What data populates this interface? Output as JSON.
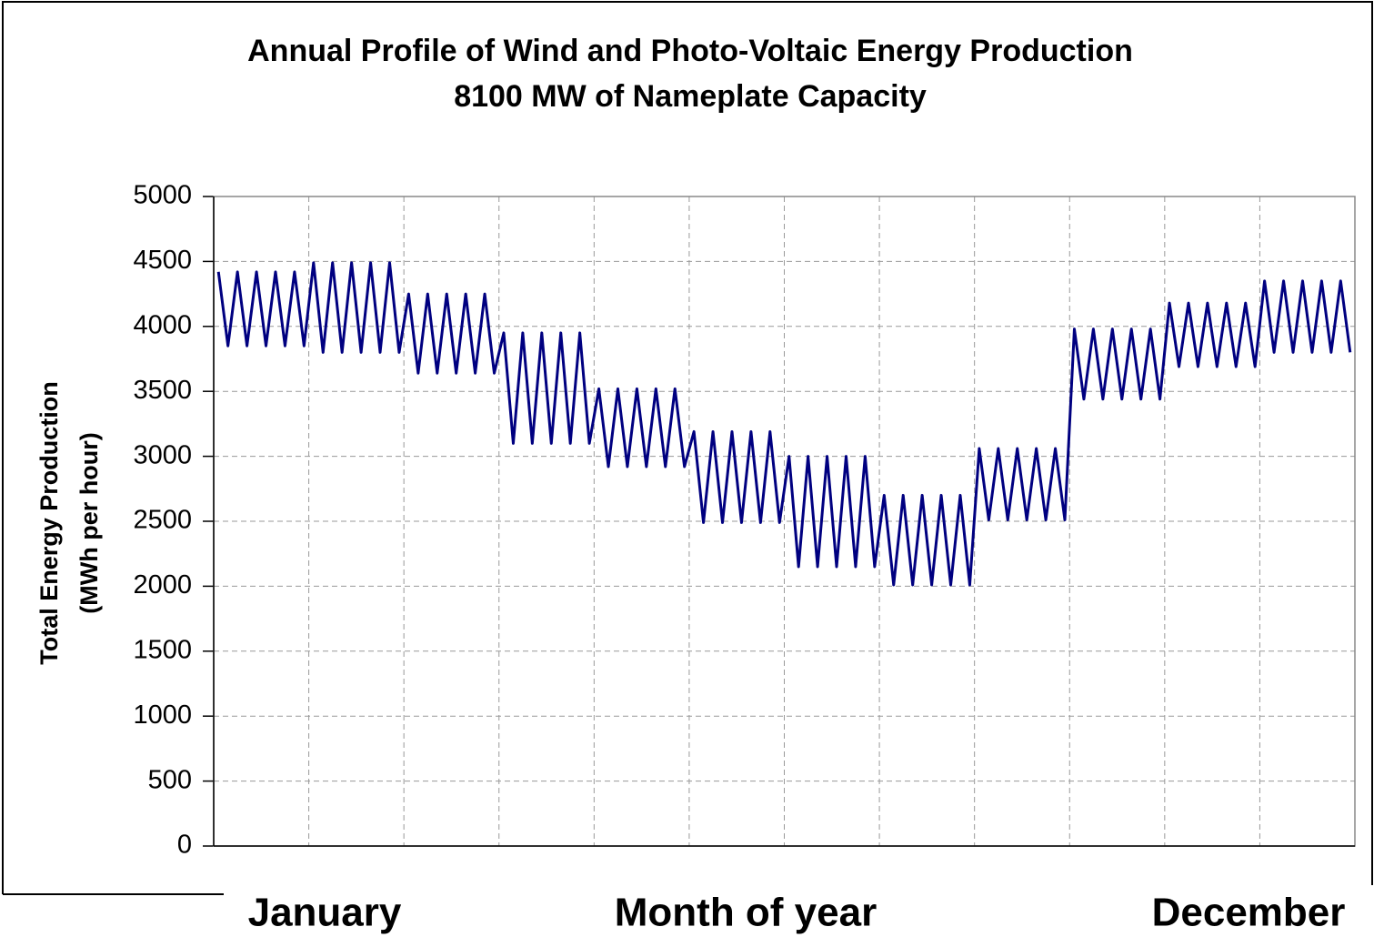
{
  "chart_data": {
    "type": "line",
    "title": [
      "Annual Profile of Wind and Photo-Voltaic Energy Production",
      "8100 MW of Nameplate Capacity"
    ],
    "ylabel": [
      "Total Energy Production",
      "(MWh per hour)"
    ],
    "xlabel": "Month of year",
    "annotations": [
      "January",
      "December"
    ],
    "xlim": [
      0,
      12
    ],
    "xticks": [
      0,
      1,
      2,
      3,
      4,
      5,
      6,
      7,
      8,
      9,
      10,
      11,
      12
    ],
    "ylim": [
      0,
      5000
    ],
    "yticks": [
      0,
      500,
      1000,
      1500,
      2000,
      2500,
      3000,
      3500,
      4000,
      4500,
      5000
    ],
    "grid": true,
    "x": [
      0.05,
      0.15,
      0.25,
      0.35,
      0.45,
      0.55,
      0.65,
      0.75,
      0.85,
      0.95,
      1.05,
      1.15,
      1.25,
      1.35,
      1.45,
      1.55,
      1.65,
      1.75,
      1.85,
      1.95,
      2.05,
      2.15,
      2.25,
      2.35,
      2.45,
      2.55,
      2.65,
      2.75,
      2.85,
      2.95,
      3.05,
      3.15,
      3.25,
      3.35,
      3.45,
      3.55,
      3.65,
      3.75,
      3.85,
      3.95,
      4.05,
      4.15,
      4.25,
      4.35,
      4.45,
      4.55,
      4.65,
      4.75,
      4.85,
      4.95,
      5.05,
      5.15,
      5.25,
      5.35,
      5.45,
      5.55,
      5.65,
      5.75,
      5.85,
      5.95,
      6.05,
      6.15,
      6.25,
      6.35,
      6.45,
      6.55,
      6.65,
      6.75,
      6.85,
      6.95,
      7.05,
      7.15,
      7.25,
      7.35,
      7.45,
      7.55,
      7.65,
      7.75,
      7.85,
      7.95,
      8.05,
      8.15,
      8.25,
      8.35,
      8.45,
      8.55,
      8.65,
      8.75,
      8.85,
      8.95,
      9.05,
      9.15,
      9.25,
      9.35,
      9.45,
      9.55,
      9.65,
      9.75,
      9.85,
      9.95,
      10.05,
      10.15,
      10.25,
      10.35,
      10.45,
      10.55,
      10.65,
      10.75,
      10.85,
      10.95,
      11.05,
      11.15,
      11.25,
      11.35,
      11.45,
      11.55,
      11.65,
      11.75,
      11.85,
      11.95
    ],
    "series": [
      {
        "color": "#000080",
        "values": [
          4420,
          3850,
          4420,
          3850,
          4420,
          3850,
          4420,
          3850,
          4420,
          3850,
          4490,
          3800,
          4490,
          3800,
          4490,
          3800,
          4490,
          3800,
          4490,
          3800,
          4250,
          3640,
          4250,
          3640,
          4250,
          3640,
          4250,
          3640,
          4250,
          3640,
          3950,
          3100,
          3950,
          3100,
          3950,
          3100,
          3950,
          3100,
          3950,
          3100,
          3520,
          2920,
          3520,
          2920,
          3520,
          2920,
          3520,
          2920,
          3520,
          2920,
          3190,
          2490,
          3190,
          2490,
          3190,
          2490,
          3190,
          2490,
          3190,
          2490,
          3000,
          2150,
          3000,
          2150,
          3000,
          2150,
          3000,
          2150,
          3000,
          2150,
          2700,
          2010,
          2700,
          2010,
          2700,
          2010,
          2700,
          2010,
          2700,
          2010,
          3060,
          2510,
          3060,
          2510,
          3060,
          2510,
          3060,
          2510,
          3060,
          2510,
          3980,
          3440,
          3980,
          3440,
          3980,
          3440,
          3980,
          3440,
          3980,
          3440,
          4180,
          3690,
          4180,
          3690,
          4180,
          3690,
          4180,
          3690,
          4180,
          3690,
          4350,
          3800,
          4350,
          3800,
          4350,
          3800,
          4350,
          3800,
          4350,
          3800
        ]
      }
    ]
  }
}
